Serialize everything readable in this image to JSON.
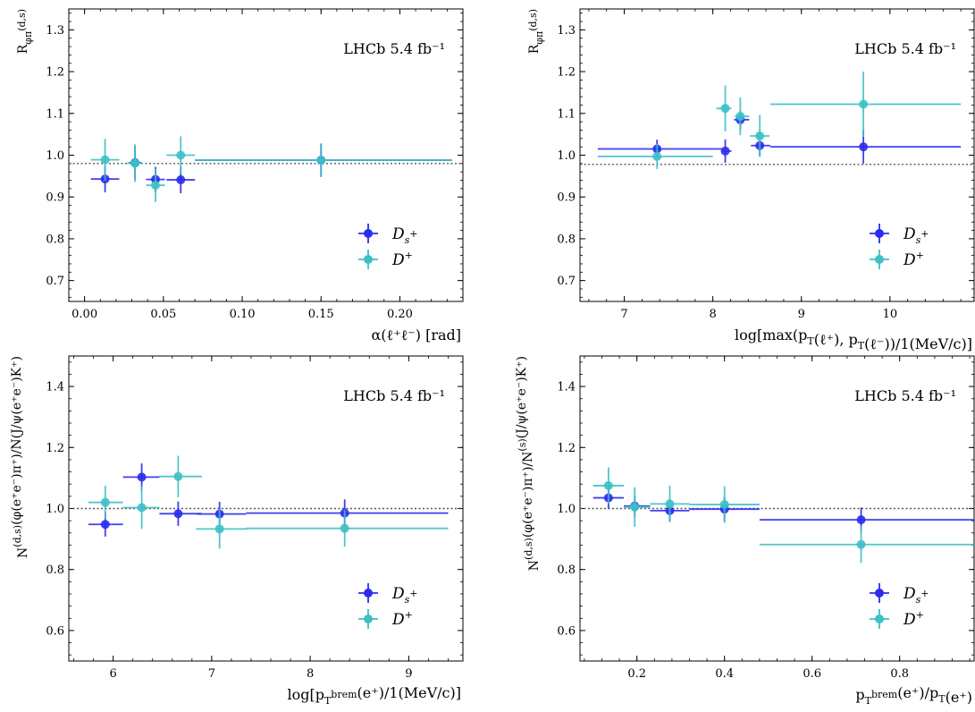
{
  "colors": {
    "ds": "#2b2bf0",
    "dplus": "#3cc0c6",
    "ref": "#555555"
  },
  "chart_data": [
    {
      "type": "scatter",
      "xlabel": "α(ℓ⁺ℓ⁻) [rad]",
      "ylabel": "R_{φπ}^{(d,s)}",
      "annotation": "LHCb 5.4 fb⁻¹",
      "xlim": [
        -0.01,
        0.24
      ],
      "ylim": [
        0.65,
        1.35
      ],
      "xticks": [
        0.0,
        0.05,
        0.1,
        0.15,
        0.2
      ],
      "xtick_labels": [
        "0.00",
        "0.05",
        "0.10",
        "0.15",
        "0.20"
      ],
      "yticks": [
        0.7,
        0.8,
        0.9,
        1.0,
        1.1,
        1.2,
        1.3
      ],
      "ytick_labels": [
        "0.7",
        "0.8",
        "0.9",
        "1.0",
        "1.1",
        "1.2",
        "1.3"
      ],
      "reference_line": 0.98,
      "legend": "bottom-right",
      "series": [
        {
          "name": "D_s^+",
          "color_key": "ds",
          "points": [
            {
              "x": 0.013,
              "xerr": [
                0.009,
                0.009
              ],
              "y": 0.943,
              "yerr": 0.032
            },
            {
              "x": 0.032,
              "xerr": [
                0.004,
                0.004
              ],
              "y": 0.982,
              "yerr": 0.04
            },
            {
              "x": 0.045,
              "xerr": [
                0.006,
                0.006
              ],
              "y": 0.942,
              "yerr": 0.03
            },
            {
              "x": 0.061,
              "xerr": [
                0.009,
                0.009
              ],
              "y": 0.941,
              "yerr": 0.032
            },
            {
              "x": 0.15,
              "xerr": [
                0.08,
                0.083
              ],
              "y": 0.988,
              "yerr": 0.04
            }
          ]
        },
        {
          "name": "D^+",
          "color_key": "dplus",
          "points": [
            {
              "x": 0.013,
              "xerr": [
                0.009,
                0.009
              ],
              "y": 0.989,
              "yerr": 0.05
            },
            {
              "x": 0.032,
              "xerr": [
                0.005,
                0.005
              ],
              "y": 0.981,
              "yerr": 0.045
            },
            {
              "x": 0.045,
              "xerr": [
                0.006,
                0.006
              ],
              "y": 0.928,
              "yerr": 0.04
            },
            {
              "x": 0.061,
              "xerr": [
                0.009,
                0.009
              ],
              "y": 1.0,
              "yerr": 0.045
            },
            {
              "x": 0.15,
              "xerr": [
                0.08,
                0.083
              ],
              "y": 0.988,
              "yerr": 0.04
            }
          ]
        }
      ]
    },
    {
      "type": "scatter",
      "xlabel": "log[max(p_T(ℓ⁺), p_T(ℓ⁻))/1(MeV/c)]",
      "ylabel": "R_{φπ}^{(d,s)}",
      "annotation": "LHCb 5.4 fb⁻¹",
      "xlim": [
        6.5,
        10.95
      ],
      "ylim": [
        0.65,
        1.35
      ],
      "xticks": [
        7,
        8,
        9,
        10
      ],
      "xtick_labels": [
        "7",
        "8",
        "9",
        "10"
      ],
      "yticks": [
        0.7,
        0.8,
        0.9,
        1.0,
        1.1,
        1.2,
        1.3
      ],
      "ytick_labels": [
        "0.7",
        "0.8",
        "0.9",
        "1.0",
        "1.1",
        "1.2",
        "1.3"
      ],
      "reference_line": 0.978,
      "legend": "bottom-right",
      "series": [
        {
          "name": "D_s^+",
          "color_key": "ds",
          "points": [
            {
              "x": 7.37,
              "xerr": [
                0.67,
                0.73
              ],
              "y": 1.015,
              "yerr": 0.022
            },
            {
              "x": 8.14,
              "xerr": [
                0.04,
                0.07
              ],
              "y": 1.01,
              "yerr": 0.028
            },
            {
              "x": 8.31,
              "xerr": [
                0.07,
                0.1
              ],
              "y": 1.085,
              "yerr": 0.022
            },
            {
              "x": 8.53,
              "xerr": [
                0.1,
                0.12
              ],
              "y": 1.023,
              "yerr": 0.025
            },
            {
              "x": 9.7,
              "xerr": [
                1.05,
                1.1
              ],
              "y": 1.02,
              "yerr": 0.04
            }
          ]
        },
        {
          "name": "D^+",
          "color_key": "dplus",
          "points": [
            {
              "x": 7.37,
              "xerr": [
                0.67,
                0.63
              ],
              "y": 0.997,
              "yerr": 0.03
            },
            {
              "x": 8.14,
              "xerr": [
                0.1,
                0.07
              ],
              "y": 1.112,
              "yerr": 0.055
            },
            {
              "x": 8.31,
              "xerr": [
                0.06,
                0.1
              ],
              "y": 1.093,
              "yerr": 0.045
            },
            {
              "x": 8.53,
              "xerr": [
                0.11,
                0.11
              ],
              "y": 1.046,
              "yerr": 0.05
            },
            {
              "x": 9.7,
              "xerr": [
                1.05,
                1.1
              ],
              "y": 1.122,
              "yerr": 0.078
            }
          ]
        }
      ]
    },
    {
      "type": "scatter",
      "xlabel": "log[p_T^brem(e⁺)/1(MeV/c)]",
      "ylabel": "N^(d,s)(φ(e⁺e⁻)π⁺)/N(J/ψ(e⁺e⁻)K⁺)",
      "annotation": "LHCb 5.4 fb⁻¹",
      "xlim": [
        5.55,
        9.55
      ],
      "ylim": [
        0.5,
        1.5
      ],
      "xticks": [
        6,
        7,
        8,
        9
      ],
      "xtick_labels": [
        "6",
        "7",
        "8",
        "9"
      ],
      "yticks": [
        0.6,
        0.8,
        1.0,
        1.2,
        1.4
      ],
      "ytick_labels": [
        "0.6",
        "0.8",
        "1.0",
        "1.2",
        "1.4"
      ],
      "reference_line": 1.0,
      "legend": "bottom-right",
      "series": [
        {
          "name": "D_s^+",
          "color_key": "ds",
          "points": [
            {
              "x": 5.92,
              "xerr": [
                0.17,
                0.18
              ],
              "y": 0.948,
              "yerr": 0.04
            },
            {
              "x": 6.29,
              "xerr": [
                0.19,
                0.18
              ],
              "y": 1.103,
              "yerr": 0.045
            },
            {
              "x": 6.66,
              "xerr": [
                0.19,
                0.24
              ],
              "y": 0.983,
              "yerr": 0.04
            },
            {
              "x": 7.08,
              "xerr": [
                0.23,
                0.27
              ],
              "y": 0.982,
              "yerr": 0.04
            },
            {
              "x": 8.35,
              "xerr": [
                1.0,
                1.05
              ],
              "y": 0.985,
              "yerr": 0.045
            }
          ]
        },
        {
          "name": "D^+",
          "color_key": "dplus",
          "points": [
            {
              "x": 5.92,
              "xerr": [
                0.17,
                0.18
              ],
              "y": 1.02,
              "yerr": 0.055
            },
            {
              "x": 6.29,
              "xerr": [
                0.19,
                0.18
              ],
              "y": 1.003,
              "yerr": 0.07
            },
            {
              "x": 6.66,
              "xerr": [
                0.19,
                0.24
              ],
              "y": 1.105,
              "yerr": 0.068
            },
            {
              "x": 7.08,
              "xerr": [
                0.24,
                0.28
              ],
              "y": 0.933,
              "yerr": 0.065
            },
            {
              "x": 8.35,
              "xerr": [
                1.0,
                1.05
              ],
              "y": 0.935,
              "yerr": 0.06
            }
          ]
        }
      ]
    },
    {
      "type": "scatter",
      "xlabel": "p_T^brem(e⁺)/p_T(e⁺)",
      "ylabel": "N^(d,s)(φ(e⁺e⁻)π⁺)/N^(s)(J/ψ(e⁺e⁻)K⁺)",
      "annotation": "LHCb 5.4 fb⁻¹",
      "xlim": [
        0.07,
        0.97
      ],
      "ylim": [
        0.5,
        1.5
      ],
      "xticks": [
        0.2,
        0.4,
        0.6,
        0.8
      ],
      "xtick_labels": [
        "0.2",
        "0.4",
        "0.6",
        "0.8"
      ],
      "yticks": [
        0.6,
        0.8,
        1.0,
        1.2,
        1.4
      ],
      "ytick_labels": [
        "0.6",
        "0.8",
        "1.0",
        "1.2",
        "1.4"
      ],
      "reference_line": 1.0,
      "legend": "bottom-right",
      "series": [
        {
          "name": "D_s^+",
          "color_key": "ds",
          "points": [
            {
              "x": 0.135,
              "xerr": [
                0.035,
                0.035
              ],
              "y": 1.035,
              "yerr": 0.035
            },
            {
              "x": 0.195,
              "xerr": [
                0.025,
                0.035
              ],
              "y": 1.008,
              "yerr": 0.035
            },
            {
              "x": 0.275,
              "xerr": [
                0.045,
                0.045
              ],
              "y": 0.993,
              "yerr": 0.035
            },
            {
              "x": 0.4,
              "xerr": [
                0.08,
                0.08
              ],
              "y": 0.998,
              "yerr": 0.04
            },
            {
              "x": 0.712,
              "xerr": [
                0.232,
                0.258
              ],
              "y": 0.963,
              "yerr": 0.04
            }
          ]
        },
        {
          "name": "D^+",
          "color_key": "dplus",
          "points": [
            {
              "x": 0.135,
              "xerr": [
                0.035,
                0.035
              ],
              "y": 1.075,
              "yerr": 0.06
            },
            {
              "x": 0.195,
              "xerr": [
                0.025,
                0.035
              ],
              "y": 1.005,
              "yerr": 0.065
            },
            {
              "x": 0.275,
              "xerr": [
                0.045,
                0.045
              ],
              "y": 1.015,
              "yerr": 0.06
            },
            {
              "x": 0.4,
              "xerr": [
                0.08,
                0.08
              ],
              "y": 1.013,
              "yerr": 0.06
            },
            {
              "x": 0.712,
              "xerr": [
                0.232,
                0.258
              ],
              "y": 0.882,
              "yerr": 0.06
            }
          ]
        }
      ]
    }
  ]
}
